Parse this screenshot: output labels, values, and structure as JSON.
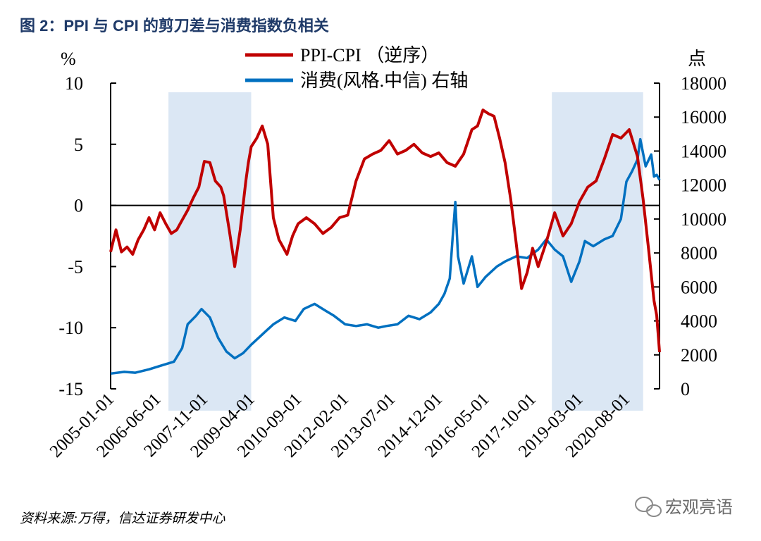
{
  "title": "图 2：PPI 与 CPI 的剪刀差与消费指数负相关",
  "source": "资料来源:万得，信达证券研发中心",
  "watermark": "宏观亮语",
  "chart_data": {
    "type": "line",
    "title": "图 2：PPI 与 CPI 的剪刀差与消费指数负相关",
    "left_unit": "%",
    "right_unit": "点",
    "left_axis": {
      "ylim": [
        -15,
        10
      ],
      "ticks": [
        -15,
        -10,
        -5,
        0,
        5,
        10
      ]
    },
    "right_axis": {
      "ylim": [
        0,
        18000
      ],
      "ticks": [
        0,
        2000,
        4000,
        6000,
        8000,
        10000,
        12000,
        14000,
        16000,
        18000
      ]
    },
    "x_range": [
      "2005-01-01",
      "2021-08-01"
    ],
    "x_ticks": [
      "2005-01-01",
      "2006-06-01",
      "2007-11-01",
      "2009-04-01",
      "2010-09-01",
      "2012-02-01",
      "2013-07-01",
      "2014-12-01",
      "2016-05-01",
      "2017-10-01",
      "2019-03-01",
      "2020-08-01"
    ],
    "legend_position": "top-center",
    "zero_line": 0,
    "shaded_periods": [
      {
        "start": "2006-10-01",
        "end": "2009-04-01"
      },
      {
        "start": "2018-05-01",
        "end": "2021-02-01"
      }
    ],
    "colors": {
      "ppi_cpi": "#c00000",
      "consumer": "#0070c0",
      "shade": "#dbe7f4",
      "title": "#1f3a68"
    },
    "series": [
      {
        "name": "PPI-CPI （逆序）",
        "axis": "left",
        "points": [
          [
            "2005-01-01",
            -3.8
          ],
          [
            "2005-03-01",
            -2.0
          ],
          [
            "2005-05-01",
            -3.8
          ],
          [
            "2005-07-01",
            -3.4
          ],
          [
            "2005-09-01",
            -4.0
          ],
          [
            "2005-11-01",
            -2.8
          ],
          [
            "2006-01-01",
            -2.0
          ],
          [
            "2006-03-01",
            -1.0
          ],
          [
            "2006-05-01",
            -2.0
          ],
          [
            "2006-07-01",
            -0.6
          ],
          [
            "2006-09-01",
            -1.5
          ],
          [
            "2006-11-01",
            -2.3
          ],
          [
            "2007-01-01",
            -2.0
          ],
          [
            "2007-03-01",
            -1.2
          ],
          [
            "2007-05-01",
            -0.4
          ],
          [
            "2007-07-01",
            0.6
          ],
          [
            "2007-09-01",
            1.5
          ],
          [
            "2007-11-01",
            3.6
          ],
          [
            "2008-01-01",
            3.5
          ],
          [
            "2008-03-01",
            2.0
          ],
          [
            "2008-05-01",
            1.5
          ],
          [
            "2008-06-01",
            0.8
          ],
          [
            "2008-08-01",
            -2.0
          ],
          [
            "2008-10-01",
            -5.0
          ],
          [
            "2008-12-01",
            -2.0
          ],
          [
            "2009-02-01",
            2.0
          ],
          [
            "2009-03-01",
            3.5
          ],
          [
            "2009-04-01",
            4.8
          ],
          [
            "2009-06-01",
            5.5
          ],
          [
            "2009-08-01",
            6.5
          ],
          [
            "2009-10-01",
            5.0
          ],
          [
            "2009-12-01",
            -1.0
          ],
          [
            "2010-02-01",
            -2.8
          ],
          [
            "2010-05-01",
            -4.0
          ],
          [
            "2010-07-01",
            -2.5
          ],
          [
            "2010-09-01",
            -1.5
          ],
          [
            "2010-12-01",
            -1.0
          ],
          [
            "2011-03-01",
            -1.5
          ],
          [
            "2011-06-01",
            -2.3
          ],
          [
            "2011-09-01",
            -1.8
          ],
          [
            "2011-12-01",
            -1.0
          ],
          [
            "2012-03-01",
            -0.8
          ],
          [
            "2012-06-01",
            2.0
          ],
          [
            "2012-09-01",
            3.8
          ],
          [
            "2012-12-01",
            4.2
          ],
          [
            "2013-03-01",
            4.5
          ],
          [
            "2013-06-01",
            5.3
          ],
          [
            "2013-09-01",
            4.2
          ],
          [
            "2013-12-01",
            4.5
          ],
          [
            "2014-03-01",
            5.0
          ],
          [
            "2014-06-01",
            4.3
          ],
          [
            "2014-09-01",
            4.0
          ],
          [
            "2014-12-01",
            4.3
          ],
          [
            "2015-03-01",
            3.5
          ],
          [
            "2015-06-01",
            3.2
          ],
          [
            "2015-09-01",
            4.2
          ],
          [
            "2015-12-01",
            6.2
          ],
          [
            "2016-02-01",
            6.5
          ],
          [
            "2016-04-01",
            7.8
          ],
          [
            "2016-06-01",
            7.5
          ],
          [
            "2016-08-01",
            7.3
          ],
          [
            "2016-10-01",
            5.5
          ],
          [
            "2016-12-01",
            3.5
          ],
          [
            "2017-02-01",
            0.5
          ],
          [
            "2017-04-01",
            -3.0
          ],
          [
            "2017-06-01",
            -6.8
          ],
          [
            "2017-08-01",
            -5.5
          ],
          [
            "2017-10-01",
            -3.5
          ],
          [
            "2017-12-01",
            -5.0
          ],
          [
            "2018-03-01",
            -3.0
          ],
          [
            "2018-06-01",
            -0.6
          ],
          [
            "2018-09-01",
            -2.5
          ],
          [
            "2018-12-01",
            -1.5
          ],
          [
            "2019-03-01",
            0.3
          ],
          [
            "2019-06-01",
            1.5
          ],
          [
            "2019-09-01",
            2.0
          ],
          [
            "2019-12-01",
            3.8
          ],
          [
            "2020-03-01",
            5.8
          ],
          [
            "2020-06-01",
            5.5
          ],
          [
            "2020-09-01",
            6.2
          ],
          [
            "2020-12-01",
            4.0
          ],
          [
            "2021-02-01",
            0.5
          ],
          [
            "2021-04-01",
            -3.5
          ],
          [
            "2021-06-01",
            -7.8
          ],
          [
            "2021-07-01",
            -9.0
          ],
          [
            "2021-08-01",
            -12.0
          ]
        ]
      },
      {
        "name": "消费(风格.中信) 右轴",
        "axis": "right",
        "points": [
          [
            "2005-01-01",
            900
          ],
          [
            "2005-06-01",
            1000
          ],
          [
            "2005-10-01",
            950
          ],
          [
            "2006-03-01",
            1150
          ],
          [
            "2006-08-01",
            1400
          ],
          [
            "2006-12-01",
            1600
          ],
          [
            "2007-03-01",
            2400
          ],
          [
            "2007-05-01",
            3800
          ],
          [
            "2007-08-01",
            4300
          ],
          [
            "2007-10-01",
            4700
          ],
          [
            "2008-01-01",
            4200
          ],
          [
            "2008-04-01",
            3000
          ],
          [
            "2008-07-01",
            2200
          ],
          [
            "2008-10-01",
            1800
          ],
          [
            "2009-01-01",
            2100
          ],
          [
            "2009-04-01",
            2600
          ],
          [
            "2009-08-01",
            3200
          ],
          [
            "2009-12-01",
            3800
          ],
          [
            "2010-04-01",
            4200
          ],
          [
            "2010-08-01",
            4000
          ],
          [
            "2010-11-01",
            4700
          ],
          [
            "2011-03-01",
            5000
          ],
          [
            "2011-07-01",
            4600
          ],
          [
            "2011-10-01",
            4300
          ],
          [
            "2012-02-01",
            3800
          ],
          [
            "2012-06-01",
            3700
          ],
          [
            "2012-10-01",
            3800
          ],
          [
            "2013-02-01",
            3600
          ],
          [
            "2013-05-01",
            3700
          ],
          [
            "2013-09-01",
            3800
          ],
          [
            "2014-01-01",
            4300
          ],
          [
            "2014-05-01",
            4100
          ],
          [
            "2014-09-01",
            4500
          ],
          [
            "2014-12-01",
            5000
          ],
          [
            "2015-02-01",
            5600
          ],
          [
            "2015-04-01",
            6500
          ],
          [
            "2015-05-01",
            8800
          ],
          [
            "2015-06-01",
            11000
          ],
          [
            "2015-07-01",
            7800
          ],
          [
            "2015-09-01",
            6200
          ],
          [
            "2015-12-01",
            7800
          ],
          [
            "2016-02-01",
            6000
          ],
          [
            "2016-05-01",
            6600
          ],
          [
            "2016-09-01",
            7200
          ],
          [
            "2016-12-01",
            7500
          ],
          [
            "2017-04-01",
            7800
          ],
          [
            "2017-08-01",
            7700
          ],
          [
            "2017-12-01",
            8200
          ],
          [
            "2018-03-01",
            8800
          ],
          [
            "2018-06-01",
            8200
          ],
          [
            "2018-09-01",
            7800
          ],
          [
            "2018-12-01",
            6300
          ],
          [
            "2019-03-01",
            7500
          ],
          [
            "2019-05-01",
            8700
          ],
          [
            "2019-08-01",
            8400
          ],
          [
            "2019-12-01",
            8800
          ],
          [
            "2020-03-01",
            9000
          ],
          [
            "2020-06-01",
            10000
          ],
          [
            "2020-08-01",
            12200
          ],
          [
            "2020-10-01",
            12800
          ],
          [
            "2020-12-01",
            13500
          ],
          [
            "2021-01-01",
            14700
          ],
          [
            "2021-03-01",
            13100
          ],
          [
            "2021-05-01",
            13800
          ],
          [
            "2021-06-01",
            12500
          ],
          [
            "2021-07-01",
            12600
          ],
          [
            "2021-08-01",
            12300
          ]
        ]
      }
    ]
  }
}
